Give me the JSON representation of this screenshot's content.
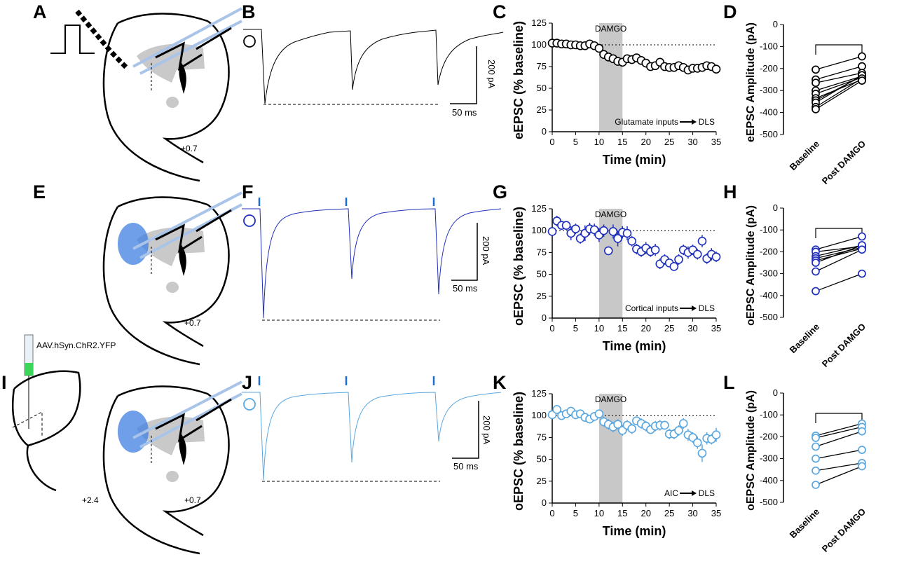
{
  "panels": {
    "A": "A",
    "B": "B",
    "C": "C",
    "D": "D",
    "E": "E",
    "F": "F",
    "G": "G",
    "H": "H",
    "I": "I",
    "J": "J",
    "K": "K",
    "L": "L"
  },
  "schematic": {
    "slice_label": "+0.7",
    "slice_label_anterior": "+2.4",
    "virus_label": "AAV.hSyn.ChR2.YFP"
  },
  "scale_bar": {
    "amplitude": "200 pA",
    "time": "50 ms"
  },
  "colors": {
    "row1": "#000000",
    "row2": "#1f2fbd",
    "row3": "#5aa7e0",
    "stim": "#1a6fd1",
    "shade": "#c8c8c8"
  },
  "chart_data": [
    {
      "panel": "C",
      "type": "scatter",
      "ylabel": "eEPSC (% baseline)",
      "xlabel": "Time (min)",
      "xlim": [
        0,
        35
      ],
      "ylim": [
        0,
        125
      ],
      "xticks": [
        "0",
        "5",
        "10",
        "15",
        "20",
        "25",
        "30",
        "35"
      ],
      "yticks": [
        "0",
        "25",
        "50",
        "75",
        "100",
        "125"
      ],
      "shaded": "DAMGO",
      "shaded_range": [
        10,
        15
      ],
      "annotation_from": "Glutamate inputs",
      "annotation_to": "DLS",
      "x": [
        0,
        1,
        2,
        3,
        4,
        5,
        6,
        7,
        8,
        9,
        10,
        11,
        12,
        13,
        14,
        15,
        16,
        17,
        18,
        19,
        20,
        21,
        22,
        23,
        24,
        25,
        26,
        27,
        28,
        29,
        30,
        31,
        32,
        33,
        34,
        35
      ],
      "y": [
        102,
        102,
        101,
        101,
        100,
        100,
        99,
        99,
        101,
        99,
        96,
        89,
        86,
        84,
        81,
        80,
        84,
        83,
        85,
        82,
        79,
        75,
        76,
        80,
        75,
        74,
        74,
        76,
        74,
        71,
        73,
        73,
        74,
        76,
        75,
        72
      ]
    },
    {
      "panel": "D",
      "type": "line",
      "ylabel": "eEPSC Amplitude (pA)",
      "categories": [
        "Baseline",
        "Post DAMGO"
      ],
      "ylim": [
        -500,
        0
      ],
      "yticks": [
        "0",
        "-100",
        "-200",
        "-300",
        "-400",
        "-500"
      ],
      "pairs": [
        [
          -205,
          -145
        ],
        [
          -250,
          -190
        ],
        [
          -265,
          -220
        ],
        [
          -300,
          -235
        ],
        [
          -315,
          -240
        ],
        [
          -335,
          -250
        ],
        [
          -345,
          -235
        ],
        [
          -355,
          -230
        ],
        [
          -375,
          -245
        ],
        [
          -385,
          -255
        ]
      ]
    },
    {
      "panel": "G",
      "type": "scatter",
      "ylabel": "oEPSC (% baseline)",
      "xlabel": "Time (min)",
      "xlim": [
        0,
        35
      ],
      "ylim": [
        0,
        125
      ],
      "xticks": [
        "0",
        "5",
        "10",
        "15",
        "20",
        "25",
        "30",
        "35"
      ],
      "yticks": [
        "0",
        "25",
        "50",
        "75",
        "100",
        "125"
      ],
      "shaded": "DAMGO",
      "shaded_range": [
        10,
        15
      ],
      "annotation_from": "Cortical inputs",
      "annotation_to": "DLS",
      "x": [
        0,
        1,
        2,
        3,
        4,
        5,
        6,
        7,
        8,
        9,
        10,
        11,
        12,
        13,
        14,
        15,
        16,
        17,
        18,
        19,
        20,
        21,
        22,
        23,
        24,
        25,
        26,
        27,
        28,
        29,
        30,
        31,
        32,
        33,
        34,
        35
      ],
      "y": [
        99,
        111,
        106,
        106,
        97,
        102,
        91,
        97,
        102,
        101,
        95,
        100,
        77,
        99,
        91,
        98,
        97,
        88,
        79,
        76,
        80,
        76,
        78,
        62,
        67,
        63,
        59,
        67,
        78,
        75,
        78,
        73,
        88,
        68,
        73,
        70
      ],
      "err": [
        5,
        6,
        5,
        5,
        8,
        6,
        6,
        9,
        7,
        7,
        8,
        7,
        5,
        8,
        9,
        7,
        8,
        6,
        6,
        6,
        7,
        6,
        7,
        6,
        6,
        5,
        5,
        6,
        6,
        7,
        6,
        6,
        7,
        6,
        7,
        6
      ]
    },
    {
      "panel": "H",
      "type": "line",
      "ylabel": "oEPSC Amplitude (pA)",
      "categories": [
        "Baseline",
        "Post DAMGO"
      ],
      "ylim": [
        -500,
        0
      ],
      "yticks": [
        "0",
        "-100",
        "-200",
        "-300",
        "-400",
        "-500"
      ],
      "pairs": [
        [
          -190,
          -130
        ],
        [
          -200,
          -175
        ],
        [
          -220,
          -170
        ],
        [
          -230,
          -180
        ],
        [
          -240,
          -185
        ],
        [
          -250,
          -170
        ],
        [
          -290,
          -190
        ],
        [
          -380,
          -300
        ]
      ]
    },
    {
      "panel": "K",
      "type": "scatter",
      "ylabel": "oEPSC (% baseline)",
      "xlabel": "Time (min)",
      "xlim": [
        0,
        35
      ],
      "ylim": [
        0,
        125
      ],
      "xticks": [
        "0",
        "5",
        "10",
        "15",
        "20",
        "25",
        "30",
        "35"
      ],
      "yticks": [
        "0",
        "25",
        "50",
        "75",
        "100",
        "125"
      ],
      "shaded": "DAMGO",
      "shaded_range": [
        10,
        15
      ],
      "annotation_from": "AIC",
      "annotation_to": "DLS",
      "x": [
        0,
        1,
        2,
        3,
        4,
        5,
        6,
        7,
        8,
        9,
        10,
        11,
        12,
        13,
        14,
        15,
        16,
        17,
        18,
        19,
        20,
        21,
        22,
        23,
        24,
        25,
        26,
        27,
        28,
        29,
        30,
        31,
        32,
        33,
        34,
        35
      ],
      "y": [
        101,
        107,
        100,
        102,
        105,
        101,
        102,
        98,
        96,
        99,
        102,
        93,
        90,
        87,
        90,
        83,
        89,
        85,
        94,
        91,
        88,
        84,
        88,
        89,
        89,
        79,
        79,
        83,
        91,
        78,
        75,
        69,
        57,
        74,
        73,
        78
      ],
      "err": [
        4,
        4,
        5,
        4,
        4,
        5,
        4,
        5,
        4,
        5,
        4,
        6,
        6,
        6,
        6,
        6,
        6,
        6,
        5,
        6,
        6,
        5,
        6,
        6,
        5,
        6,
        6,
        6,
        6,
        7,
        6,
        7,
        10,
        7,
        6,
        8
      ]
    },
    {
      "panel": "L",
      "type": "line",
      "ylabel": "oEPSC Amplitude (pA)",
      "categories": [
        "Baseline",
        "Post DAMGO"
      ],
      "ylim": [
        -500,
        0
      ],
      "yticks": [
        "0",
        "-100",
        "-200",
        "-300",
        "-400",
        "-500"
      ],
      "pairs": [
        [
          -195,
          -140
        ],
        [
          -205,
          -155
        ],
        [
          -245,
          -175
        ],
        [
          -300,
          -260
        ],
        [
          -355,
          -320
        ],
        [
          -420,
          -335
        ]
      ]
    }
  ]
}
